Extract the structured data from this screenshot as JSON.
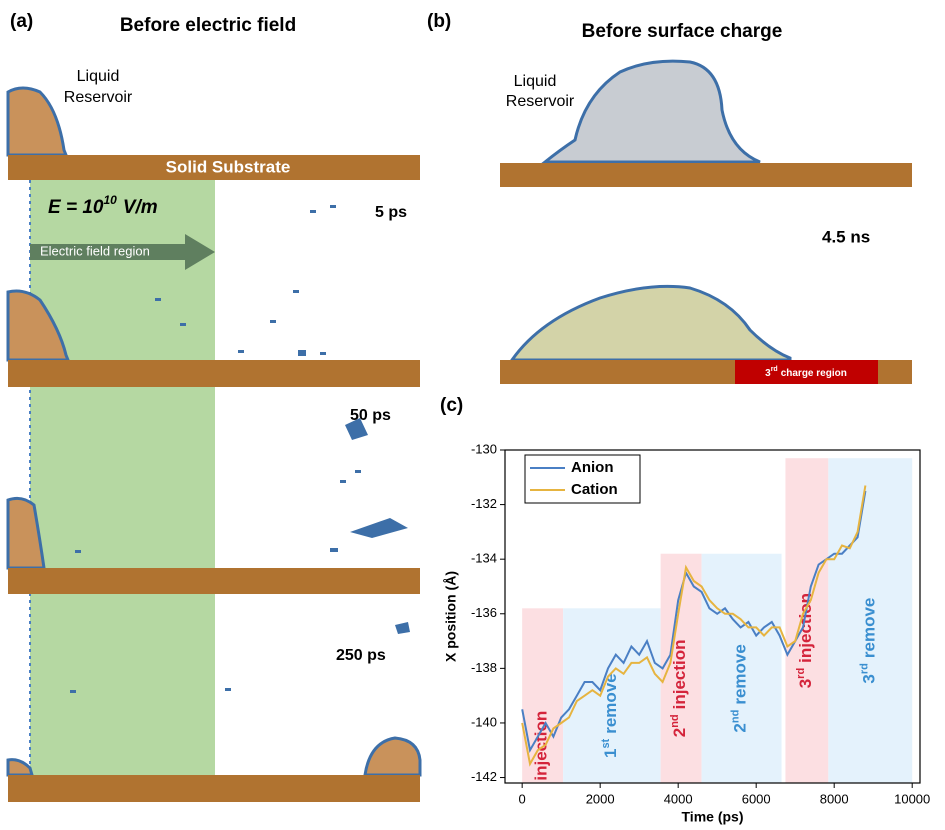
{
  "panel_a": {
    "label": "(a)",
    "title": "Before electric field",
    "reservoir_line1": "Liquid",
    "reservoir_line2": "Reservoir",
    "substrate": "Solid Substrate",
    "field": {
      "base": "E = 10",
      "exponent": "10",
      "unit": "V/m"
    },
    "arrow": "Electric field region",
    "times": [
      "5 ps",
      "50 ps",
      "250 ps"
    ]
  },
  "panel_b": {
    "label": "(b)",
    "title": "Before surface charge",
    "reservoir_line1": "Liquid",
    "reservoir_line2": "Reservoir",
    "time": "4.5 ns",
    "charge": {
      "prefix": "3",
      "sup": "rd",
      "text": "charge region"
    }
  },
  "panel_c": {
    "label": "(c)"
  },
  "chart_data": {
    "type": "line",
    "xlabel": "Time (ps)",
    "ylabel": "X position (Å)",
    "xlim": [
      -440,
      10200
    ],
    "ylim": [
      -142.2,
      -130
    ],
    "xticks": [
      0,
      2000,
      4000,
      6000,
      8000,
      10000
    ],
    "yticks": [
      -142,
      -140,
      -138,
      -136,
      -134,
      -132,
      -130
    ],
    "legend": "top-left",
    "x": [
      0,
      200,
      400,
      600,
      800,
      1000,
      1200,
      1400,
      1600,
      1800,
      2000,
      2200,
      2400,
      2600,
      2800,
      3000,
      3200,
      3400,
      3600,
      3800,
      4000,
      4200,
      4400,
      4600,
      4800,
      5000,
      5200,
      5400,
      5600,
      5800,
      6000,
      6200,
      6400,
      6600,
      6800,
      7000,
      7200,
      7400,
      7600,
      7800,
      8000,
      8200,
      8400,
      8600,
      8800
    ],
    "series": [
      {
        "name": "Anion",
        "color": "#4a7fc4",
        "values": [
          -139.5,
          -141,
          -140.5,
          -140,
          -140.5,
          -139.8,
          -139.5,
          -139,
          -138.5,
          -138.5,
          -138.8,
          -138,
          -137.5,
          -137.8,
          -137.2,
          -137.5,
          -137,
          -137.8,
          -138,
          -137.5,
          -135.5,
          -134.5,
          -135,
          -135.2,
          -135.8,
          -136,
          -135.8,
          -136.2,
          -136.5,
          -136.3,
          -136.8,
          -136.5,
          -136.3,
          -136.8,
          -137.5,
          -137,
          -136.5,
          -135,
          -134.2,
          -134,
          -133.8,
          -133.8,
          -133.5,
          -133.2,
          -131.5
        ]
      },
      {
        "name": "Cation",
        "color": "#e6b440",
        "values": [
          -140,
          -141.5,
          -141,
          -140.8,
          -140.2,
          -140,
          -139.8,
          -139.2,
          -139,
          -138.8,
          -139,
          -138.3,
          -138,
          -138.2,
          -137.8,
          -137.8,
          -137.6,
          -138.2,
          -138.5,
          -137.8,
          -136,
          -134.3,
          -134.8,
          -135,
          -135.5,
          -135.8,
          -136,
          -136,
          -136.2,
          -136.5,
          -136.5,
          -136.8,
          -136.5,
          -136.5,
          -137.2,
          -137,
          -136,
          -135.5,
          -134.5,
          -134,
          -134,
          -133.5,
          -133.6,
          -133,
          -131.3
        ]
      }
    ],
    "regions": [
      {
        "text": "injection",
        "color": "#d4243b",
        "fill": "#fcdfe2",
        "xlim": [
          0,
          1050
        ],
        "ylim": [
          -142.2,
          -135.8
        ]
      },
      {
        "prefix": "1",
        "sup": "st",
        "text": "remove",
        "color": "#3a8fd0",
        "fill": "#e4f2fc",
        "xlim": [
          1050,
          3550
        ],
        "ylim": [
          -142.2,
          -135.8
        ]
      },
      {
        "prefix": "2",
        "sup": "nd",
        "text": "injection",
        "color": "#d4243b",
        "fill": "#fcdfe2",
        "xlim": [
          3550,
          4600
        ],
        "ylim": [
          -142.2,
          -133.8
        ]
      },
      {
        "prefix": "2",
        "sup": "nd",
        "text": "remove",
        "color": "#3a8fd0",
        "fill": "#e4f2fc",
        "xlim": [
          4600,
          6650
        ],
        "ylim": [
          -142.2,
          -133.8
        ]
      },
      {
        "prefix": "3",
        "sup": "rd",
        "text": "injection",
        "color": "#d4243b",
        "fill": "#fcdfe2",
        "xlim": [
          6750,
          7850
        ],
        "ylim": [
          -142.2,
          -130.3
        ]
      },
      {
        "prefix": "3",
        "sup": "rd",
        "text": "remove",
        "color": "#3a8fd0",
        "fill": "#e4f2fc",
        "xlim": [
          7850,
          10000
        ],
        "ylim": [
          -142.2,
          -130.3
        ]
      }
    ]
  }
}
